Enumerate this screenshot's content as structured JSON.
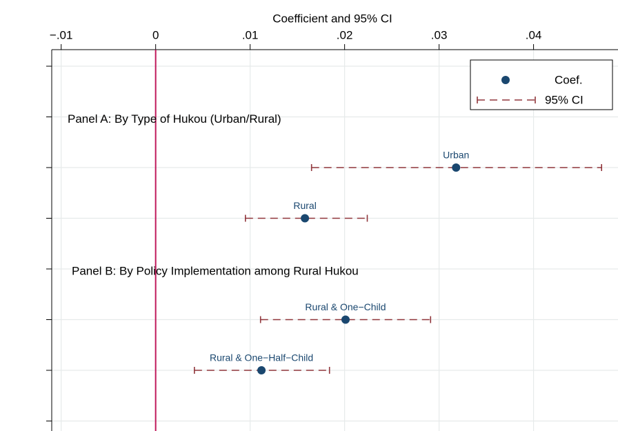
{
  "chart_data": {
    "type": "coefplot",
    "xlabel": "Coefficient and 95% CI",
    "xlim": [
      -0.011,
      0.0485
    ],
    "xticks": [
      {
        "value": -0.01,
        "label": "−.01"
      },
      0,
      {
        "value": 0.01,
        "label": ".01"
      },
      {
        "value": 0.02,
        "label": ".02"
      },
      {
        "value": 0.03,
        "label": ".03"
      },
      {
        "value": 0.04,
        "label": ".04"
      }
    ],
    "grid": true,
    "xline": 0,
    "xline_color": "#c0185a",
    "categories": [
      null,
      "Panel A: By Type of Hukou (Urban/Rural)",
      "Urban",
      "Rural",
      "Panel B: By Policy Implementation among Rural Hukou",
      "Rural & One−Child",
      "Rural & One−Half−Child",
      null
    ],
    "series": [
      {
        "name": "Coef.",
        "color": "#1a476f",
        "values": [
          null,
          null,
          0.0318,
          0.0158,
          null,
          0.0201,
          0.0112,
          null
        ]
      },
      {
        "name": "95% CI",
        "color": "#90353b",
        "lower": [
          null,
          null,
          0.0165,
          0.0095,
          null,
          0.0111,
          0.0041,
          null
        ],
        "upper": [
          null,
          null,
          0.0472,
          0.0224,
          null,
          0.0291,
          0.0184,
          null
        ]
      }
    ],
    "legend": "top-right"
  }
}
